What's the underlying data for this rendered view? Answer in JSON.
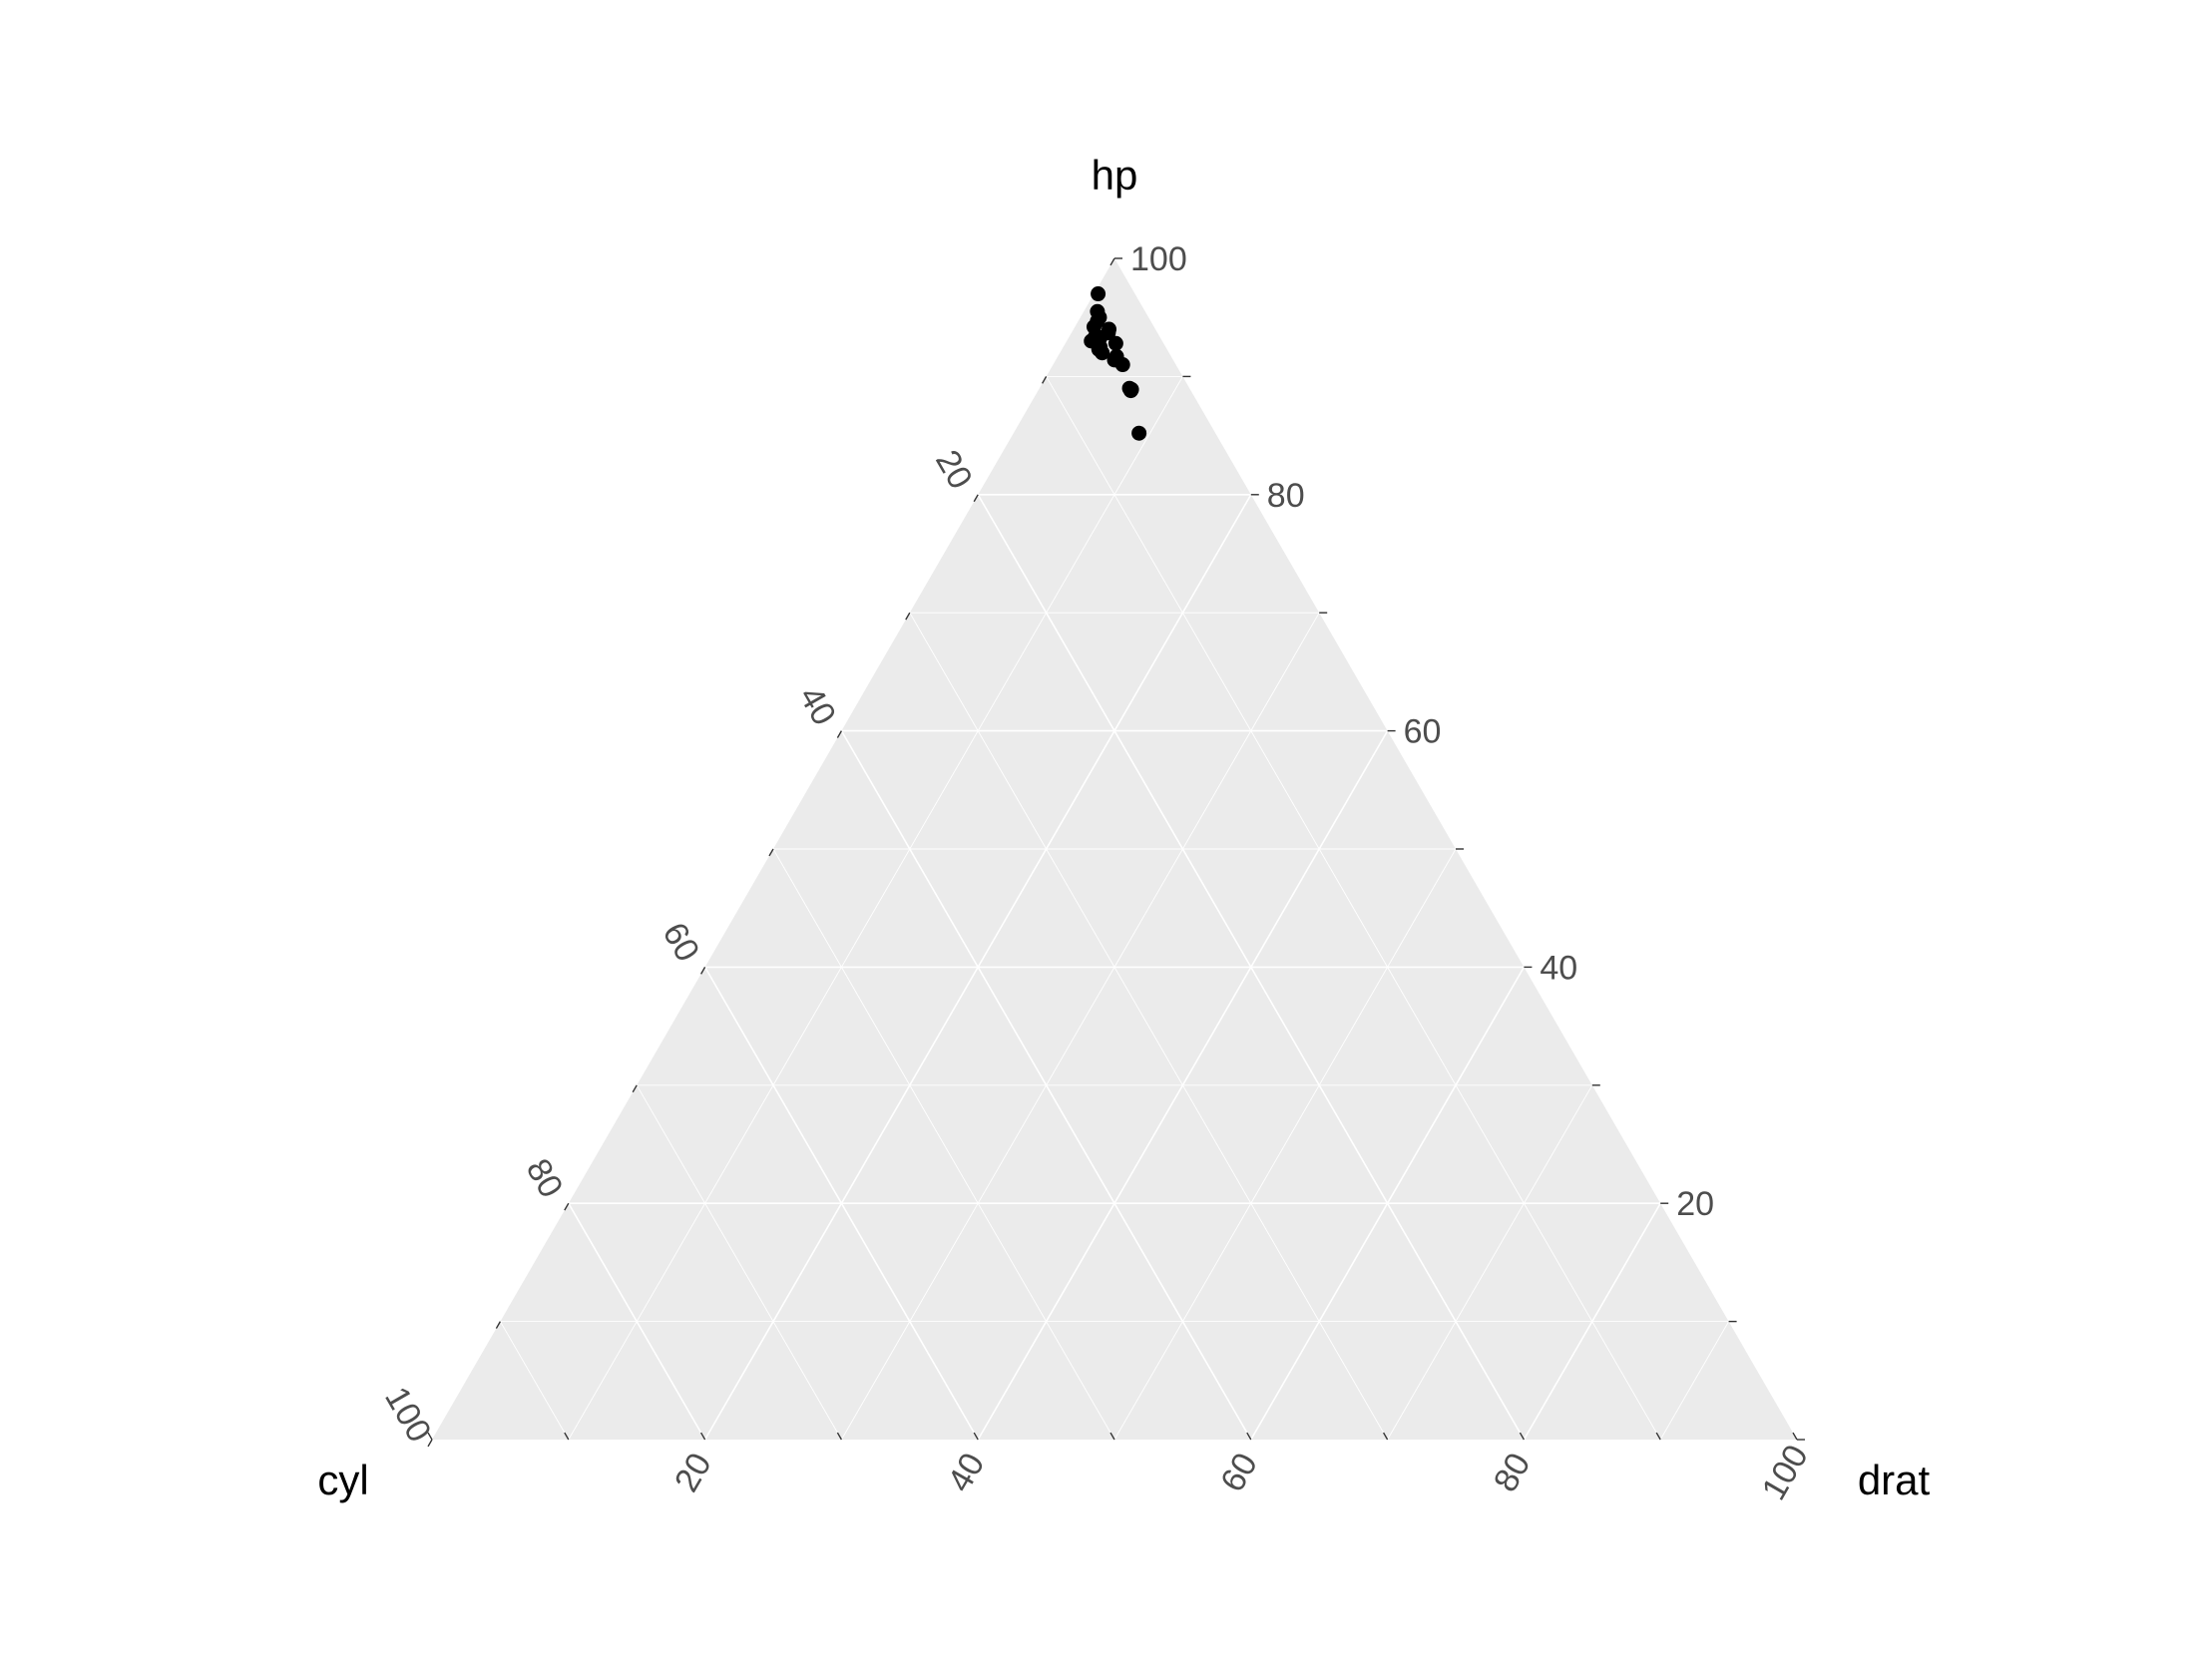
{
  "chart_data": {
    "type": "scatter",
    "subtype": "ternary",
    "axes": {
      "top": {
        "label": "hp",
        "ticks": [
          "20",
          "40",
          "60",
          "80",
          "100"
        ]
      },
      "left": {
        "label": "cyl",
        "ticks": [
          "20",
          "40",
          "60",
          "80",
          "100"
        ]
      },
      "right": {
        "label": "drat",
        "ticks": [
          "20",
          "40",
          "60",
          "80",
          "100"
        ]
      }
    },
    "range": [
      0,
      100
    ],
    "grid": true,
    "background_color": "#ebebeb",
    "grid_color": "#ffffff",
    "point_color": "#000000",
    "points": [
      {
        "hp": 97.0,
        "cyl": 2.7,
        "drat": 0.3
      },
      {
        "hp": 95.5,
        "cyl": 3.5,
        "drat": 1.0
      },
      {
        "hp": 95.0,
        "cyl": 3.6,
        "drat": 1.4
      },
      {
        "hp": 94.7,
        "cyl": 3.9,
        "drat": 1.4
      },
      {
        "hp": 94.2,
        "cyl": 4.4,
        "drat": 1.4
      },
      {
        "hp": 94.0,
        "cyl": 3.4,
        "drat": 2.6
      },
      {
        "hp": 93.7,
        "cyl": 3.6,
        "drat": 2.7
      },
      {
        "hp": 93.4,
        "cyl": 4.7,
        "drat": 1.9
      },
      {
        "hp": 93.3,
        "cyl": 4.4,
        "drat": 2.3
      },
      {
        "hp": 93.0,
        "cyl": 5.2,
        "drat": 1.8
      },
      {
        "hp": 92.8,
        "cyl": 3.5,
        "drat": 3.7
      },
      {
        "hp": 92.5,
        "cyl": 4.8,
        "drat": 2.7
      },
      {
        "hp": 92.3,
        "cyl": 5.0,
        "drat": 2.7
      },
      {
        "hp": 92.0,
        "cyl": 4.9,
        "drat": 3.1
      },
      {
        "hp": 91.7,
        "cyl": 4.0,
        "drat": 4.3
      },
      {
        "hp": 91.4,
        "cyl": 4.3,
        "drat": 4.3
      },
      {
        "hp": 91.0,
        "cyl": 3.9,
        "drat": 5.1
      },
      {
        "hp": 89.0,
        "cyl": 4.4,
        "drat": 6.6
      },
      {
        "hp": 88.9,
        "cyl": 4.3,
        "drat": 6.8
      },
      {
        "hp": 88.8,
        "cyl": 4.4,
        "drat": 6.8
      },
      {
        "hp": 85.2,
        "cyl": 5.6,
        "drat": 9.2
      }
    ]
  }
}
